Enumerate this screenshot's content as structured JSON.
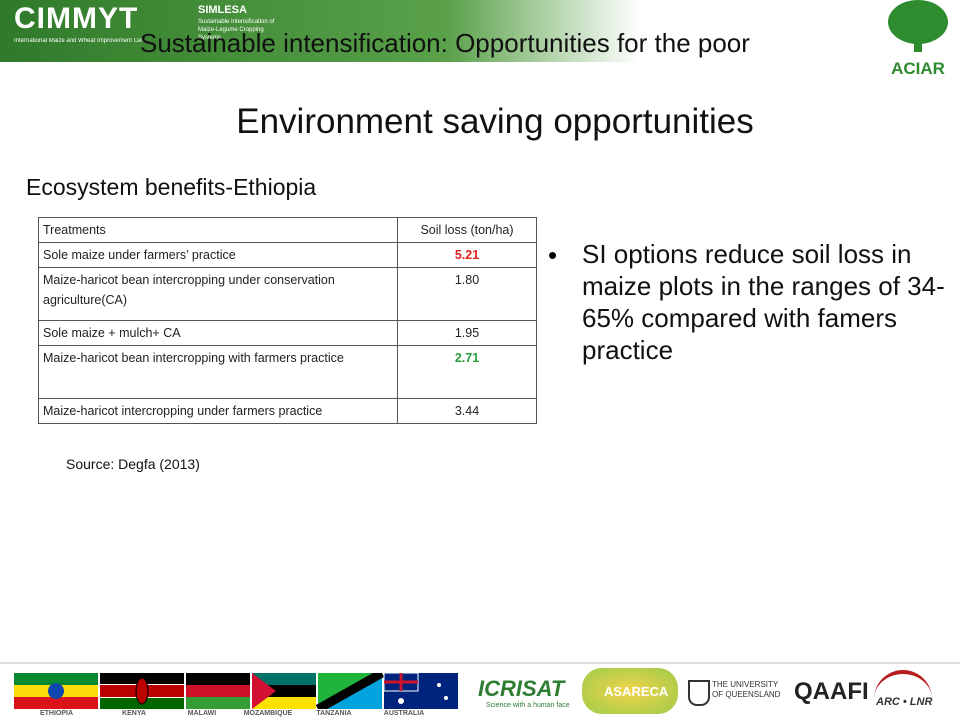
{
  "header": {
    "cimmyt": "CIMMYT",
    "cimmyt_sub": "International Maize and Wheat Improvement Center",
    "simlesa": "SIMLESA",
    "simlesa_sub": "Sustainable Intensification of Maize-Legume Cropping Systems",
    "aciar": "ACIAR"
  },
  "slide": {
    "title": "Sustainable intensification: Opportunities for the poor",
    "heading": "Environment saving opportunities",
    "subheading": "Ecosystem benefits-Ethiopia",
    "source": "Source: Degfa (2013)",
    "bullet": "SI options reduce soil loss in maize plots in the ranges of 34-65% compared with famers practice"
  },
  "table": {
    "columns": [
      "Treatments",
      "Soil loss (ton/ha)"
    ],
    "rows": [
      [
        "Sole maize under farmers’ practice",
        "5.21"
      ],
      [
        "Maize-haricot bean intercropping under conservation agriculture(CA)",
        "1.80"
      ],
      [
        "Sole maize + mulch+ CA",
        "1.95"
      ],
      [
        "Maize-haricot bean intercropping  with farmers practice",
        "2.71"
      ],
      [
        "Maize-haricot intercropping under farmers practice",
        "3.44"
      ]
    ]
  },
  "footer": {
    "countries": [
      "ETHIOPIA",
      "KENYA",
      "MALAWI",
      "MOZAMBIQUE",
      "TANZANIA",
      "AUSTRALIA"
    ],
    "icrisat": "ICRISAT",
    "icrisat_sub": "Science with a human face",
    "asareca": "ASARECA",
    "uq": "THE UNIVERSITY OF QUEENSLAND",
    "qaafi": "QAAFI",
    "arc": "ARC • LNR"
  }
}
